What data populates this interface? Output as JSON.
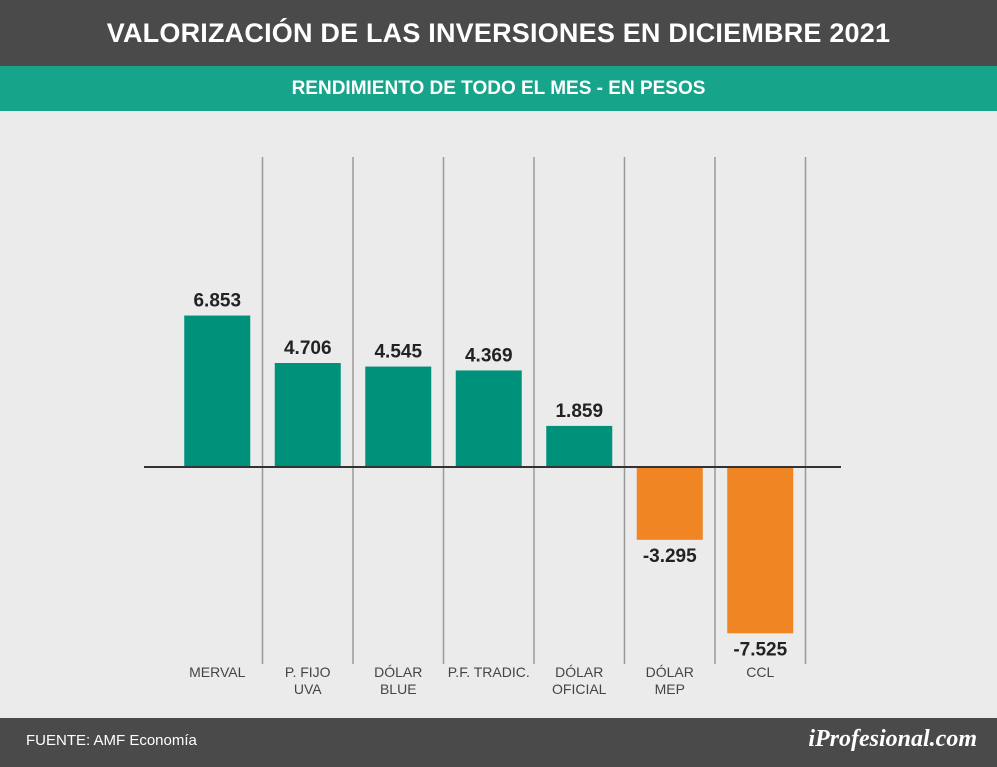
{
  "header": {
    "title": "VALORIZACIÓN DE LAS INVERSIONES EN DICIEMBRE 2021",
    "subtitle": "RENDIMIENTO DE TODO EL MES - EN PESOS"
  },
  "footer": {
    "source": "FUENTE: AMF Economía",
    "logo": "iProfesional.com"
  },
  "colors": {
    "positive": "#00917a",
    "negative": "#f08523",
    "title_bg": "#4a4a4a",
    "subtitle_bg": "#16a58b",
    "background": "#ebebeb"
  },
  "chart_data": {
    "type": "bar",
    "title": "VALORIZACIÓN DE LAS INVERSIONES EN DICIEMBRE 2021",
    "subtitle": "RENDIMIENTO DE TODO EL MES - EN PESOS",
    "categories": [
      [
        "MERVAL"
      ],
      [
        "P. FIJO",
        "UVA"
      ],
      [
        "DÓLAR",
        "BLUE"
      ],
      [
        "P.F. TRADIC."
      ],
      [
        "DÓLAR",
        "OFICIAL"
      ],
      [
        "DÓLAR",
        "MEP"
      ],
      [
        "CCL"
      ]
    ],
    "values": [
      6.853,
      4.706,
      4.545,
      4.369,
      1.859,
      -3.295,
      -7.525
    ],
    "value_labels": [
      "6.853",
      "4.706",
      "4.545",
      "4.369",
      "1.859",
      "-3.295",
      "-7.525"
    ],
    "ylim": [
      -8,
      13.2
    ],
    "grid": "vertical separators between categories",
    "xlabel": "",
    "ylabel": ""
  }
}
